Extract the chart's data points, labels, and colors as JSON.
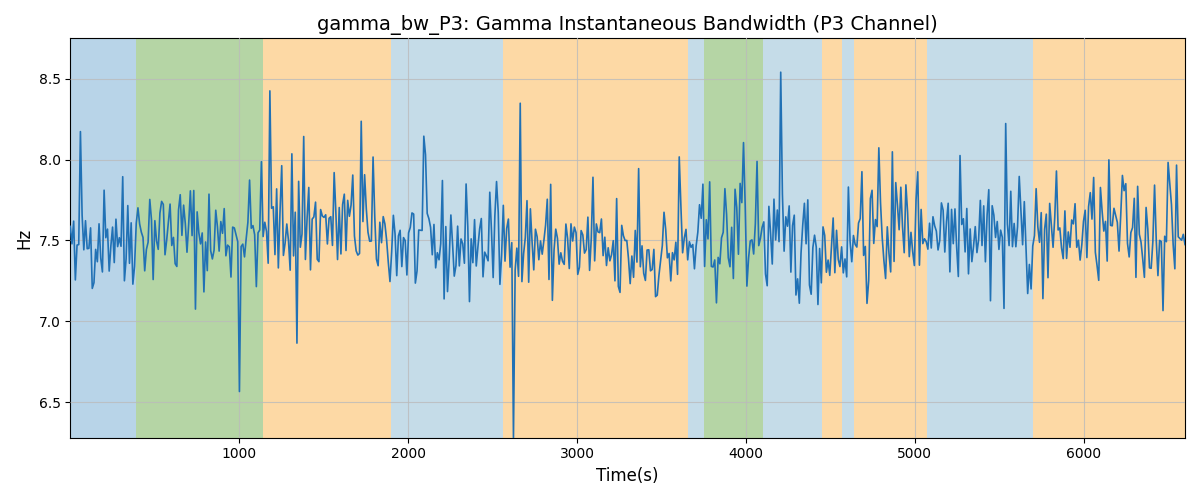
{
  "title": "gamma_bw_P3: Gamma Instantaneous Bandwidth (P3 Channel)",
  "xlabel": "Time(s)",
  "ylabel": "Hz",
  "xlim": [
    0,
    6600
  ],
  "ylim": [
    6.28,
    8.75
  ],
  "line_color": "#2171b5",
  "line_width": 1.2,
  "background_bands": [
    {
      "xstart": 0,
      "xend": 390,
      "color": "#b8d4e8"
    },
    {
      "xstart": 390,
      "xend": 1140,
      "color": "#b5d5a5"
    },
    {
      "xstart": 1140,
      "xend": 1900,
      "color": "#fdd9a5"
    },
    {
      "xstart": 1900,
      "xend": 2560,
      "color": "#c5dce8"
    },
    {
      "xstart": 2560,
      "xend": 2650,
      "color": "#fdd9a5"
    },
    {
      "xstart": 2650,
      "xend": 3660,
      "color": "#fdd9a5"
    },
    {
      "xstart": 3660,
      "xend": 3750,
      "color": "#c5dce8"
    },
    {
      "xstart": 3750,
      "xend": 4100,
      "color": "#b5d5a5"
    },
    {
      "xstart": 4100,
      "xend": 4450,
      "color": "#c5dce8"
    },
    {
      "xstart": 4450,
      "xend": 4570,
      "color": "#fdd9a5"
    },
    {
      "xstart": 4570,
      "xend": 4640,
      "color": "#c5dce8"
    },
    {
      "xstart": 4640,
      "xend": 5070,
      "color": "#fdd9a5"
    },
    {
      "xstart": 5070,
      "xend": 5700,
      "color": "#c5dce8"
    },
    {
      "xstart": 5700,
      "xend": 5860,
      "color": "#fdd9a5"
    },
    {
      "xstart": 5860,
      "xend": 6600,
      "color": "#fdd9a5"
    }
  ],
  "seed": 42,
  "n_points": 660,
  "signal_mean": 7.5,
  "signal_std": 0.175,
  "title_fontsize": 14,
  "tick_fontsize": 10,
  "label_fontsize": 12,
  "grid_color": "#bbbbbb",
  "grid_alpha": 0.8,
  "xticks": [
    1000,
    2000,
    3000,
    4000,
    5000,
    6000
  ],
  "yticks": [
    6.5,
    7.0,
    7.5,
    8.0,
    8.5
  ]
}
